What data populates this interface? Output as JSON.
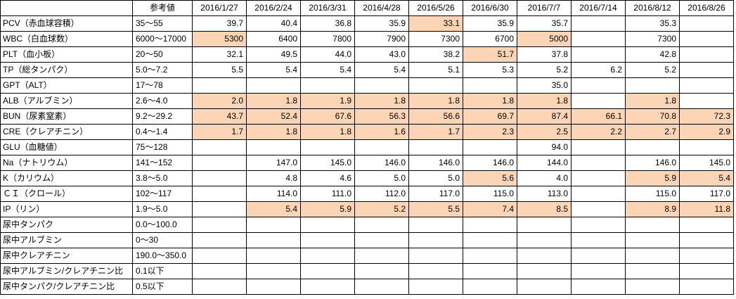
{
  "colors": {
    "highlight": "#FBD5B5",
    "grid_border": "#000000",
    "background": "#FFFFFF"
  },
  "table": {
    "corner": "",
    "reference_header": "参考値",
    "date_headers": [
      "2016/1/27",
      "2016/2/24",
      "2016/3/31",
      "2016/4/28",
      "2016/5/26",
      "2016/6/30",
      "2016/7/7",
      "2016/7/14",
      "2016/8/12",
      "2016/8/26"
    ],
    "rows": [
      {
        "label": "PCV（赤血球容積）",
        "ref": "35～55",
        "values": [
          "39.7",
          "40.4",
          "36.8",
          "35.9",
          "33.1",
          "35.9",
          "35.7",
          "",
          "35.3",
          ""
        ],
        "highlights": [
          false,
          false,
          false,
          false,
          true,
          false,
          false,
          false,
          false,
          false
        ]
      },
      {
        "label": "WBC（白血球数）",
        "ref": "6000～17000",
        "values": [
          "5300",
          "6400",
          "7800",
          "7900",
          "7300",
          "6700",
          "5000",
          "",
          "7300",
          ""
        ],
        "highlights": [
          true,
          false,
          false,
          false,
          false,
          false,
          true,
          false,
          false,
          false
        ]
      },
      {
        "label": "PLT（血小板）",
        "ref": "20～50",
        "values": [
          "32.1",
          "49.5",
          "44.0",
          "43.0",
          "38.2",
          "51.7",
          "37.8",
          "",
          "42.8",
          ""
        ],
        "highlights": [
          false,
          false,
          false,
          false,
          false,
          true,
          false,
          false,
          false,
          false
        ]
      },
      {
        "label": "TP（総タンパク）",
        "ref": "5.0～7.2",
        "values": [
          "5.5",
          "5.4",
          "5.4",
          "5.4",
          "5.1",
          "5.3",
          "5.2",
          "6.2",
          "5.2",
          ""
        ],
        "highlights": [
          false,
          false,
          false,
          false,
          false,
          false,
          false,
          false,
          false,
          false
        ]
      },
      {
        "label": "GPT（ALT）",
        "ref": "17～78",
        "values": [
          "",
          "",
          "",
          "",
          "",
          "",
          "35.0",
          "",
          "",
          ""
        ],
        "highlights": [
          false,
          false,
          false,
          false,
          false,
          false,
          false,
          false,
          false,
          false
        ]
      },
      {
        "label": "ALB（アルブミン）",
        "ref": "2.6～4.0",
        "values": [
          "2.0",
          "1.8",
          "1.9",
          "1.8",
          "1.8",
          "1.8",
          "1.8",
          "",
          "1.8",
          ""
        ],
        "highlights": [
          true,
          true,
          true,
          true,
          true,
          true,
          true,
          false,
          true,
          false
        ]
      },
      {
        "label": "BUN（尿素窒素）",
        "ref": "9.2～29.2",
        "values": [
          "43.7",
          "52.4",
          "67.6",
          "56.3",
          "56.6",
          "69.7",
          "87.4",
          "66.1",
          "70.8",
          "72.3"
        ],
        "highlights": [
          true,
          true,
          true,
          true,
          true,
          true,
          true,
          true,
          true,
          true
        ]
      },
      {
        "label": "CRE（クレアチニン）",
        "ref": "0.4～1.4",
        "values": [
          "1.7",
          "1.8",
          "1.8",
          "1.6",
          "1.7",
          "2.3",
          "2.5",
          "2.2",
          "2.7",
          "2.9"
        ],
        "highlights": [
          true,
          true,
          true,
          true,
          true,
          true,
          true,
          true,
          true,
          true
        ]
      },
      {
        "label": "GLU（血糖値）",
        "ref": "75～128",
        "values": [
          "",
          "",
          "",
          "",
          "",
          "",
          "94.0",
          "",
          "",
          ""
        ],
        "highlights": [
          false,
          false,
          false,
          false,
          false,
          false,
          false,
          false,
          false,
          false
        ]
      },
      {
        "label": "Na（ナトリウム）",
        "ref": "141～152",
        "values": [
          "",
          "147.0",
          "145.0",
          "146.0",
          "146.0",
          "146.0",
          "144.0",
          "",
          "146.0",
          "145.0"
        ],
        "highlights": [
          false,
          false,
          false,
          false,
          false,
          false,
          false,
          false,
          false,
          false
        ]
      },
      {
        "label": "K（カリウム）",
        "ref": "3.8～5.0",
        "values": [
          "",
          "4.8",
          "4.6",
          "5.0",
          "5.0",
          "5.6",
          "4.0",
          "",
          "5.9",
          "5.4"
        ],
        "highlights": [
          false,
          false,
          false,
          false,
          false,
          true,
          false,
          false,
          true,
          true
        ]
      },
      {
        "label": "ＣＩ（クロール）",
        "ref": "102～117",
        "values": [
          "",
          "114.0",
          "111.0",
          "112.0",
          "117.0",
          "115.0",
          "113.0",
          "",
          "115.0",
          "117.0"
        ],
        "highlights": [
          false,
          false,
          false,
          false,
          false,
          false,
          false,
          false,
          false,
          false
        ]
      },
      {
        "label": "IP（リン）",
        "ref": "1.9～5.0",
        "values": [
          "",
          "5.4",
          "5.9",
          "5.2",
          "5.5",
          "7.4",
          "8.5",
          "",
          "8.9",
          "11.8"
        ],
        "highlights": [
          false,
          true,
          true,
          true,
          true,
          true,
          true,
          false,
          true,
          true
        ]
      },
      {
        "label": "尿中タンパク",
        "ref": "0.0～100.0",
        "values": [
          "",
          "",
          "",
          "",
          "",
          "",
          "",
          "",
          "",
          ""
        ],
        "highlights": [
          false,
          false,
          false,
          false,
          false,
          false,
          false,
          false,
          false,
          false
        ]
      },
      {
        "label": "尿中アルブミン",
        "ref": "0～30",
        "values": [
          "",
          "",
          "",
          "",
          "",
          "",
          "",
          "",
          "",
          ""
        ],
        "highlights": [
          false,
          false,
          false,
          false,
          false,
          false,
          false,
          false,
          false,
          false
        ]
      },
      {
        "label": "尿中クレアチニン",
        "ref": "190.0～350.0",
        "values": [
          "",
          "",
          "",
          "",
          "",
          "",
          "",
          "",
          "",
          ""
        ],
        "highlights": [
          false,
          false,
          false,
          false,
          false,
          false,
          false,
          false,
          false,
          false
        ]
      },
      {
        "label": "尿中アルブミン/クレアチニン比",
        "ref": "0.1以下",
        "values": [
          "",
          "",
          "",
          "",
          "",
          "",
          "",
          "",
          "",
          ""
        ],
        "highlights": [
          false,
          false,
          false,
          false,
          false,
          false,
          false,
          false,
          false,
          false
        ]
      },
      {
        "label": "尿中タンパク/クレアチニン比",
        "ref": "0.5以下",
        "values": [
          "",
          "",
          "",
          "",
          "",
          "",
          "",
          "",
          "",
          ""
        ],
        "highlights": [
          false,
          false,
          false,
          false,
          false,
          false,
          false,
          false,
          false,
          false
        ]
      }
    ]
  }
}
